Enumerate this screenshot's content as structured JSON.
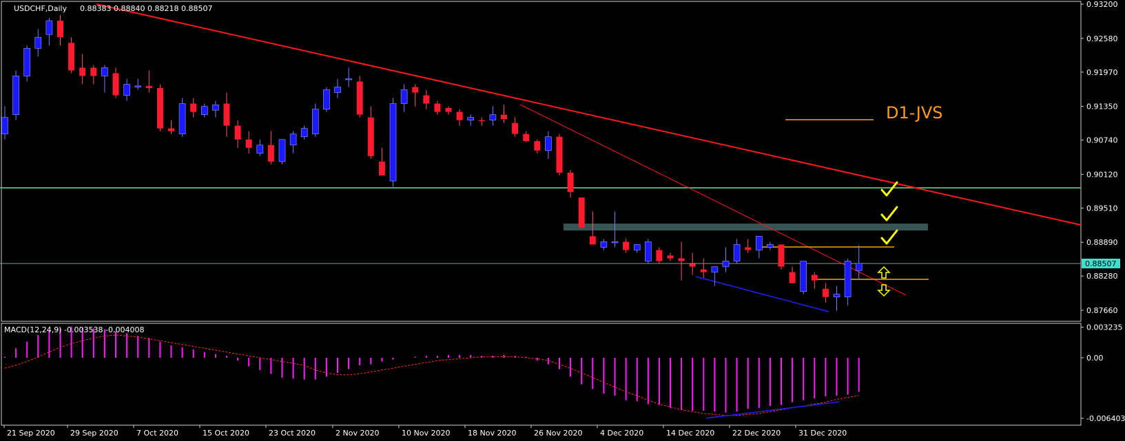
{
  "chart_data": [
    {
      "type": "candlestick",
      "symbol_label": "USDCHF,Daily",
      "ohlc_label": "0.88383 0.88840 0.88218 0.88507",
      "current_price_label": "0.88507",
      "current_price": 0.88507,
      "ylim": [
        0.874,
        0.932
      ],
      "y_ticks": [
        "0.93200",
        "0.92580",
        "0.91970",
        "0.91350",
        "0.90740",
        "0.90120",
        "0.89510",
        "0.88890",
        "0.88280",
        "0.87660"
      ],
      "x_tick_labels": [
        "21 Sep 2020",
        "29 Sep 2020",
        "7 Oct 2020",
        "15 Oct 2020",
        "23 Oct 2020",
        "2 Nov 2020",
        "10 Nov 2020",
        "18 Nov 2020",
        "26 Nov 2020",
        "4 Dec 2020",
        "14 Dec 2020",
        "22 Dec 2020",
        "31 Dec 2020"
      ],
      "annotation_text": "D1-JVS",
      "candles": [
        [
          0.9085,
          0.9135,
          0.9075,
          0.9115
        ],
        [
          0.912,
          0.92,
          0.911,
          0.919
        ],
        [
          0.919,
          0.9245,
          0.918,
          0.924
        ],
        [
          0.924,
          0.9275,
          0.9225,
          0.926
        ],
        [
          0.9265,
          0.9295,
          0.9245,
          0.929
        ],
        [
          0.929,
          0.93,
          0.9245,
          0.926
        ],
        [
          0.925,
          0.926,
          0.9195,
          0.92
        ],
        [
          0.9205,
          0.923,
          0.9175,
          0.919
        ],
        [
          0.9205,
          0.921,
          0.9175,
          0.919
        ],
        [
          0.919,
          0.921,
          0.916,
          0.9205
        ],
        [
          0.9195,
          0.9205,
          0.915,
          0.9155
        ],
        [
          0.9155,
          0.9185,
          0.9145,
          0.9175
        ],
        [
          0.917,
          0.9185,
          0.9165,
          0.9172
        ],
        [
          0.9172,
          0.92,
          0.916,
          0.9168
        ],
        [
          0.9168,
          0.9175,
          0.909,
          0.9095
        ],
        [
          0.9095,
          0.911,
          0.9085,
          0.909
        ],
        [
          0.9085,
          0.915,
          0.908,
          0.914
        ],
        [
          0.914,
          0.915,
          0.9115,
          0.9125
        ],
        [
          0.912,
          0.914,
          0.9115,
          0.9135
        ],
        [
          0.9128,
          0.9145,
          0.9115,
          0.9138
        ],
        [
          0.914,
          0.916,
          0.908,
          0.91
        ],
        [
          0.91,
          0.911,
          0.906,
          0.9075
        ],
        [
          0.9075,
          0.909,
          0.905,
          0.906
        ],
        [
          0.905,
          0.9075,
          0.9045,
          0.9065
        ],
        [
          0.9065,
          0.909,
          0.903,
          0.9035
        ],
        [
          0.9035,
          0.907,
          0.903,
          0.9075
        ],
        [
          0.9065,
          0.909,
          0.905,
          0.9085
        ],
        [
          0.908,
          0.91,
          0.9075,
          0.9095
        ],
        [
          0.9085,
          0.914,
          0.908,
          0.913
        ],
        [
          0.913,
          0.917,
          0.9125,
          0.9165
        ],
        [
          0.916,
          0.9185,
          0.915,
          0.917
        ],
        [
          0.9185,
          0.9205,
          0.917,
          0.9185
        ],
        [
          0.918,
          0.919,
          0.9115,
          0.912
        ],
        [
          0.9115,
          0.9135,
          0.904,
          0.9045
        ],
        [
          0.9035,
          0.906,
          0.901,
          0.901
        ],
        [
          0.9,
          0.915,
          0.899,
          0.914
        ],
        [
          0.914,
          0.9175,
          0.9125,
          0.9165
        ],
        [
          0.917,
          0.9175,
          0.9135,
          0.916
        ],
        [
          0.9155,
          0.9165,
          0.913,
          0.914
        ],
        [
          0.914,
          0.9145,
          0.912,
          0.9125
        ],
        [
          0.9132,
          0.9135,
          0.912,
          0.9125
        ],
        [
          0.9125,
          0.913,
          0.91,
          0.911
        ],
        [
          0.911,
          0.912,
          0.91,
          0.9115
        ],
        [
          0.911,
          0.9115,
          0.91,
          0.9108
        ],
        [
          0.911,
          0.9135,
          0.91,
          0.912
        ],
        [
          0.912,
          0.9138,
          0.9105,
          0.9112
        ],
        [
          0.9105,
          0.9115,
          0.908,
          0.9085
        ],
        [
          0.9085,
          0.909,
          0.907,
          0.9072
        ],
        [
          0.9072,
          0.9075,
          0.905,
          0.9055
        ],
        [
          0.9055,
          0.909,
          0.904,
          0.908
        ],
        [
          0.908,
          0.9085,
          0.901,
          0.9015
        ],
        [
          0.9015,
          0.902,
          0.897,
          0.898
        ],
        [
          0.897,
          0.897,
          0.8915,
          0.8915
        ],
        [
          0.89,
          0.8945,
          0.8885,
          0.8885
        ],
        [
          0.888,
          0.8895,
          0.8875,
          0.889
        ],
        [
          0.889,
          0.8945,
          0.888,
          0.889
        ],
        [
          0.889,
          0.8895,
          0.887,
          0.8875
        ],
        [
          0.8875,
          0.8885,
          0.887,
          0.8885
        ],
        [
          0.8855,
          0.8895,
          0.885,
          0.889
        ],
        [
          0.8875,
          0.888,
          0.885,
          0.8855
        ],
        [
          0.8865,
          0.887,
          0.8855,
          0.886
        ],
        [
          0.886,
          0.889,
          0.882,
          0.8855
        ],
        [
          0.885,
          0.887,
          0.883,
          0.8845
        ],
        [
          0.884,
          0.886,
          0.8825,
          0.8835
        ],
        [
          0.8835,
          0.8845,
          0.881,
          0.8845
        ],
        [
          0.8845,
          0.888,
          0.8835,
          0.8855
        ],
        [
          0.8855,
          0.8895,
          0.885,
          0.8885
        ],
        [
          0.888,
          0.8895,
          0.887,
          0.8875
        ],
        [
          0.8875,
          0.89,
          0.886,
          0.89
        ],
        [
          0.888,
          0.889,
          0.8875,
          0.8885
        ],
        [
          0.8885,
          0.8885,
          0.884,
          0.8845
        ],
        [
          0.8835,
          0.8845,
          0.8815,
          0.8815
        ],
        [
          0.88,
          0.8855,
          0.8795,
          0.8855
        ],
        [
          0.883,
          0.8835,
          0.8805,
          0.882
        ],
        [
          0.8805,
          0.8815,
          0.878,
          0.879
        ],
        [
          0.879,
          0.881,
          0.8765,
          0.8795
        ],
        [
          0.879,
          0.886,
          0.8775,
          0.8855
        ],
        [
          0.8838,
          0.8884,
          0.8822,
          0.8851
        ]
      ]
    },
    {
      "type": "bar",
      "indicator_label": "MACD(12,24,9) -0.003538 -0.004008",
      "ylim": [
        -0.0066,
        0.0036
      ],
      "y_ticks": [
        "0.003235",
        "0.00",
        "-0.006403"
      ],
      "macd": [
        0.0001,
        0.001,
        0.0017,
        0.0024,
        0.0029,
        0.0031,
        0.0033,
        0.0032,
        0.0031,
        0.003,
        0.0028,
        0.0026,
        0.0023,
        0.0021,
        0.0017,
        0.0013,
        0.0011,
        0.0009,
        0.0006,
        0.0004,
        0.0002,
        -0.0003,
        -0.0009,
        -0.0013,
        -0.0017,
        -0.0021,
        -0.0022,
        -0.0023,
        -0.0023,
        -0.002,
        -0.0016,
        -0.0012,
        -0.0008,
        -0.0007,
        -0.0004,
        -0.0002,
        0.0,
        0.0001,
        0.0002,
        0.0002,
        0.0003,
        0.0003,
        0.0003,
        0.0002,
        0.0002,
        0.0003,
        0.0002,
        0.0001,
        -0.0003,
        -0.0007,
        -0.0012,
        -0.002,
        -0.0028,
        -0.0033,
        -0.0038,
        -0.004,
        -0.0045,
        -0.0046,
        -0.0049,
        -0.005,
        -0.0053,
        -0.0055,
        -0.0056,
        -0.0056,
        -0.0057,
        -0.0058,
        -0.0057,
        -0.0054,
        -0.0053,
        -0.0051,
        -0.005,
        -0.0047,
        -0.0045,
        -0.0043,
        -0.0041,
        -0.004,
        -0.0039,
        -0.0036
      ],
      "signal": [
        -0.0011,
        -0.0008,
        -0.0004,
        0.0001,
        0.0006,
        0.0011,
        0.0015,
        0.0018,
        0.0021,
        0.0023,
        0.0024,
        0.0023,
        0.0022,
        0.002,
        0.0018,
        0.0016,
        0.0014,
        0.0012,
        0.001,
        0.0008,
        0.0006,
        0.0004,
        0.0002,
        0.0,
        -0.0002,
        -0.0004,
        -0.0006,
        -0.0008,
        -0.0013,
        -0.0016,
        -0.0018,
        -0.0018,
        -0.0017,
        -0.0015,
        -0.0013,
        -0.0011,
        -0.0009,
        -0.0007,
        -0.0005,
        -0.0003,
        -0.0002,
        -0.0001,
        0.0,
        0.0001,
        0.0001,
        0.0001,
        0.0001,
        0.0,
        -0.0001,
        -0.0003,
        -0.0007,
        -0.0011,
        -0.0016,
        -0.0021,
        -0.0026,
        -0.0031,
        -0.0036,
        -0.004,
        -0.0045,
        -0.0049,
        -0.0052,
        -0.0055,
        -0.0057,
        -0.0059,
        -0.006,
        -0.0061,
        -0.0061,
        -0.006,
        -0.0059,
        -0.0057,
        -0.0055,
        -0.0053,
        -0.0051,
        -0.0049,
        -0.0047,
        -0.0044,
        -0.0042,
        -0.004
      ]
    }
  ]
}
